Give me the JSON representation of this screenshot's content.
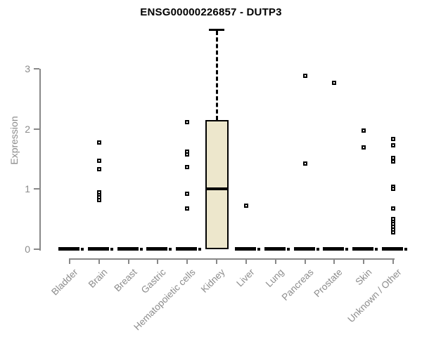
{
  "title": "ENSG00000226857 - DUTP3",
  "colors": {
    "box_fill": "#EDE7CC",
    "box_border": "#000000",
    "axis": "#888888",
    "axis_text": "#8c8c8c",
    "title_text": "#000000"
  },
  "chart_data": {
    "type": "boxplot",
    "title": "ENSG00000226857 - DUTP3",
    "xlabel": "",
    "ylabel": "Expression",
    "ylim": [
      0,
      3.7
    ],
    "axis_ticks": [
      0,
      1,
      2,
      3
    ],
    "grid": false,
    "categories": [
      "Bladder",
      "Brain",
      "Breast",
      "Gastric",
      "Hematopoietic cells",
      "Kidney",
      "Liver",
      "Lung",
      "Pancreas",
      "Prostate",
      "Skin",
      "Unknown / Other"
    ],
    "boxes": [
      {
        "category": "Bladder",
        "min": 0,
        "q1": 0,
        "median": 0,
        "q3": 0,
        "max": 0,
        "points": []
      },
      {
        "category": "Brain",
        "min": 0,
        "q1": 0,
        "median": 0,
        "q3": 0,
        "max": 0,
        "points": [
          1.77,
          1.47,
          1.33,
          0.95,
          0.9,
          0.86,
          0.82
        ]
      },
      {
        "category": "Breast",
        "min": 0,
        "q1": 0,
        "median": 0,
        "q3": 0,
        "max": 0,
        "points": []
      },
      {
        "category": "Gastric",
        "min": 0,
        "q1": 0,
        "median": 0,
        "q3": 0,
        "max": 0,
        "points": []
      },
      {
        "category": "Hematopoietic cells",
        "min": 0,
        "q1": 0,
        "median": 0,
        "q3": 0,
        "max": 0,
        "points": [
          2.11,
          1.62,
          1.58,
          1.37,
          0.92,
          0.68
        ]
      },
      {
        "category": "Kidney",
        "min": 0,
        "q1": 0,
        "median": 1.0,
        "q3": 2.15,
        "max": 3.66,
        "points": []
      },
      {
        "category": "Liver",
        "min": 0,
        "q1": 0,
        "median": 0,
        "q3": 0,
        "max": 0,
        "points": [
          0.72
        ]
      },
      {
        "category": "Lung",
        "min": 0,
        "q1": 0,
        "median": 0,
        "q3": 0,
        "max": 0,
        "points": []
      },
      {
        "category": "Pancreas",
        "min": 0,
        "q1": 0,
        "median": 0,
        "q3": 0,
        "max": 0,
        "points": [
          2.88,
          1.42
        ]
      },
      {
        "category": "Prostate",
        "min": 0,
        "q1": 0,
        "median": 0,
        "q3": 0,
        "max": 0,
        "points": [
          2.77
        ]
      },
      {
        "category": "Skin",
        "min": 0,
        "q1": 0,
        "median": 0,
        "q3": 0,
        "max": 0,
        "points": [
          1.97,
          1.69
        ]
      },
      {
        "category": "Unknown / Other",
        "min": 0,
        "q1": 0,
        "median": 0,
        "q3": 0,
        "max": 0,
        "points": [
          1.83,
          1.73,
          1.52,
          1.46,
          1.04,
          1.0,
          0.68,
          0.5,
          0.46,
          0.42,
          0.37,
          0.33,
          0.28
        ]
      }
    ]
  }
}
